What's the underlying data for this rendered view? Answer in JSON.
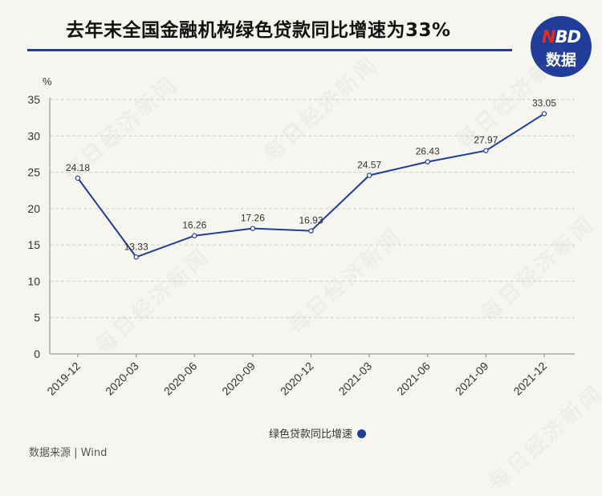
{
  "header": {
    "title": "去年末全国金融机构绿色贷款同比增速为33%"
  },
  "logo": {
    "mark_n": "N",
    "mark_bd": "BD",
    "text": "数据"
  },
  "watermark": "每日经济新闻",
  "footer": {
    "source": "数据来源 | Wind"
  },
  "colors": {
    "accent": "#1f3d99",
    "logo_n": "#e32b26",
    "grid": "#cfcfcf"
  },
  "chart_data": {
    "type": "line",
    "title": "去年末全国金融机构绿色贷款同比增速为33%",
    "ylabel": "%",
    "xlabel": "",
    "ylim": [
      0,
      35
    ],
    "yticks": [
      "0",
      "5",
      "10",
      "15",
      "20",
      "25",
      "30",
      "35"
    ],
    "grid": "horizontal-dashed",
    "legend_position": "bottom",
    "categories": [
      "2019-12",
      "2020-03",
      "2020-06",
      "2020-09",
      "2020-12",
      "2021-03",
      "2021-06",
      "2021-09",
      "2021-12"
    ],
    "series": [
      {
        "name": "绿色贷款同比增速",
        "values": [
          24.18,
          13.33,
          16.26,
          17.26,
          16.93,
          24.57,
          26.43,
          27.97,
          33.05
        ],
        "labels": [
          "24.18",
          "13.33",
          "16.26",
          "17.26",
          "16.93",
          "24.57",
          "26.43",
          "27.97",
          "33.05"
        ]
      }
    ]
  }
}
